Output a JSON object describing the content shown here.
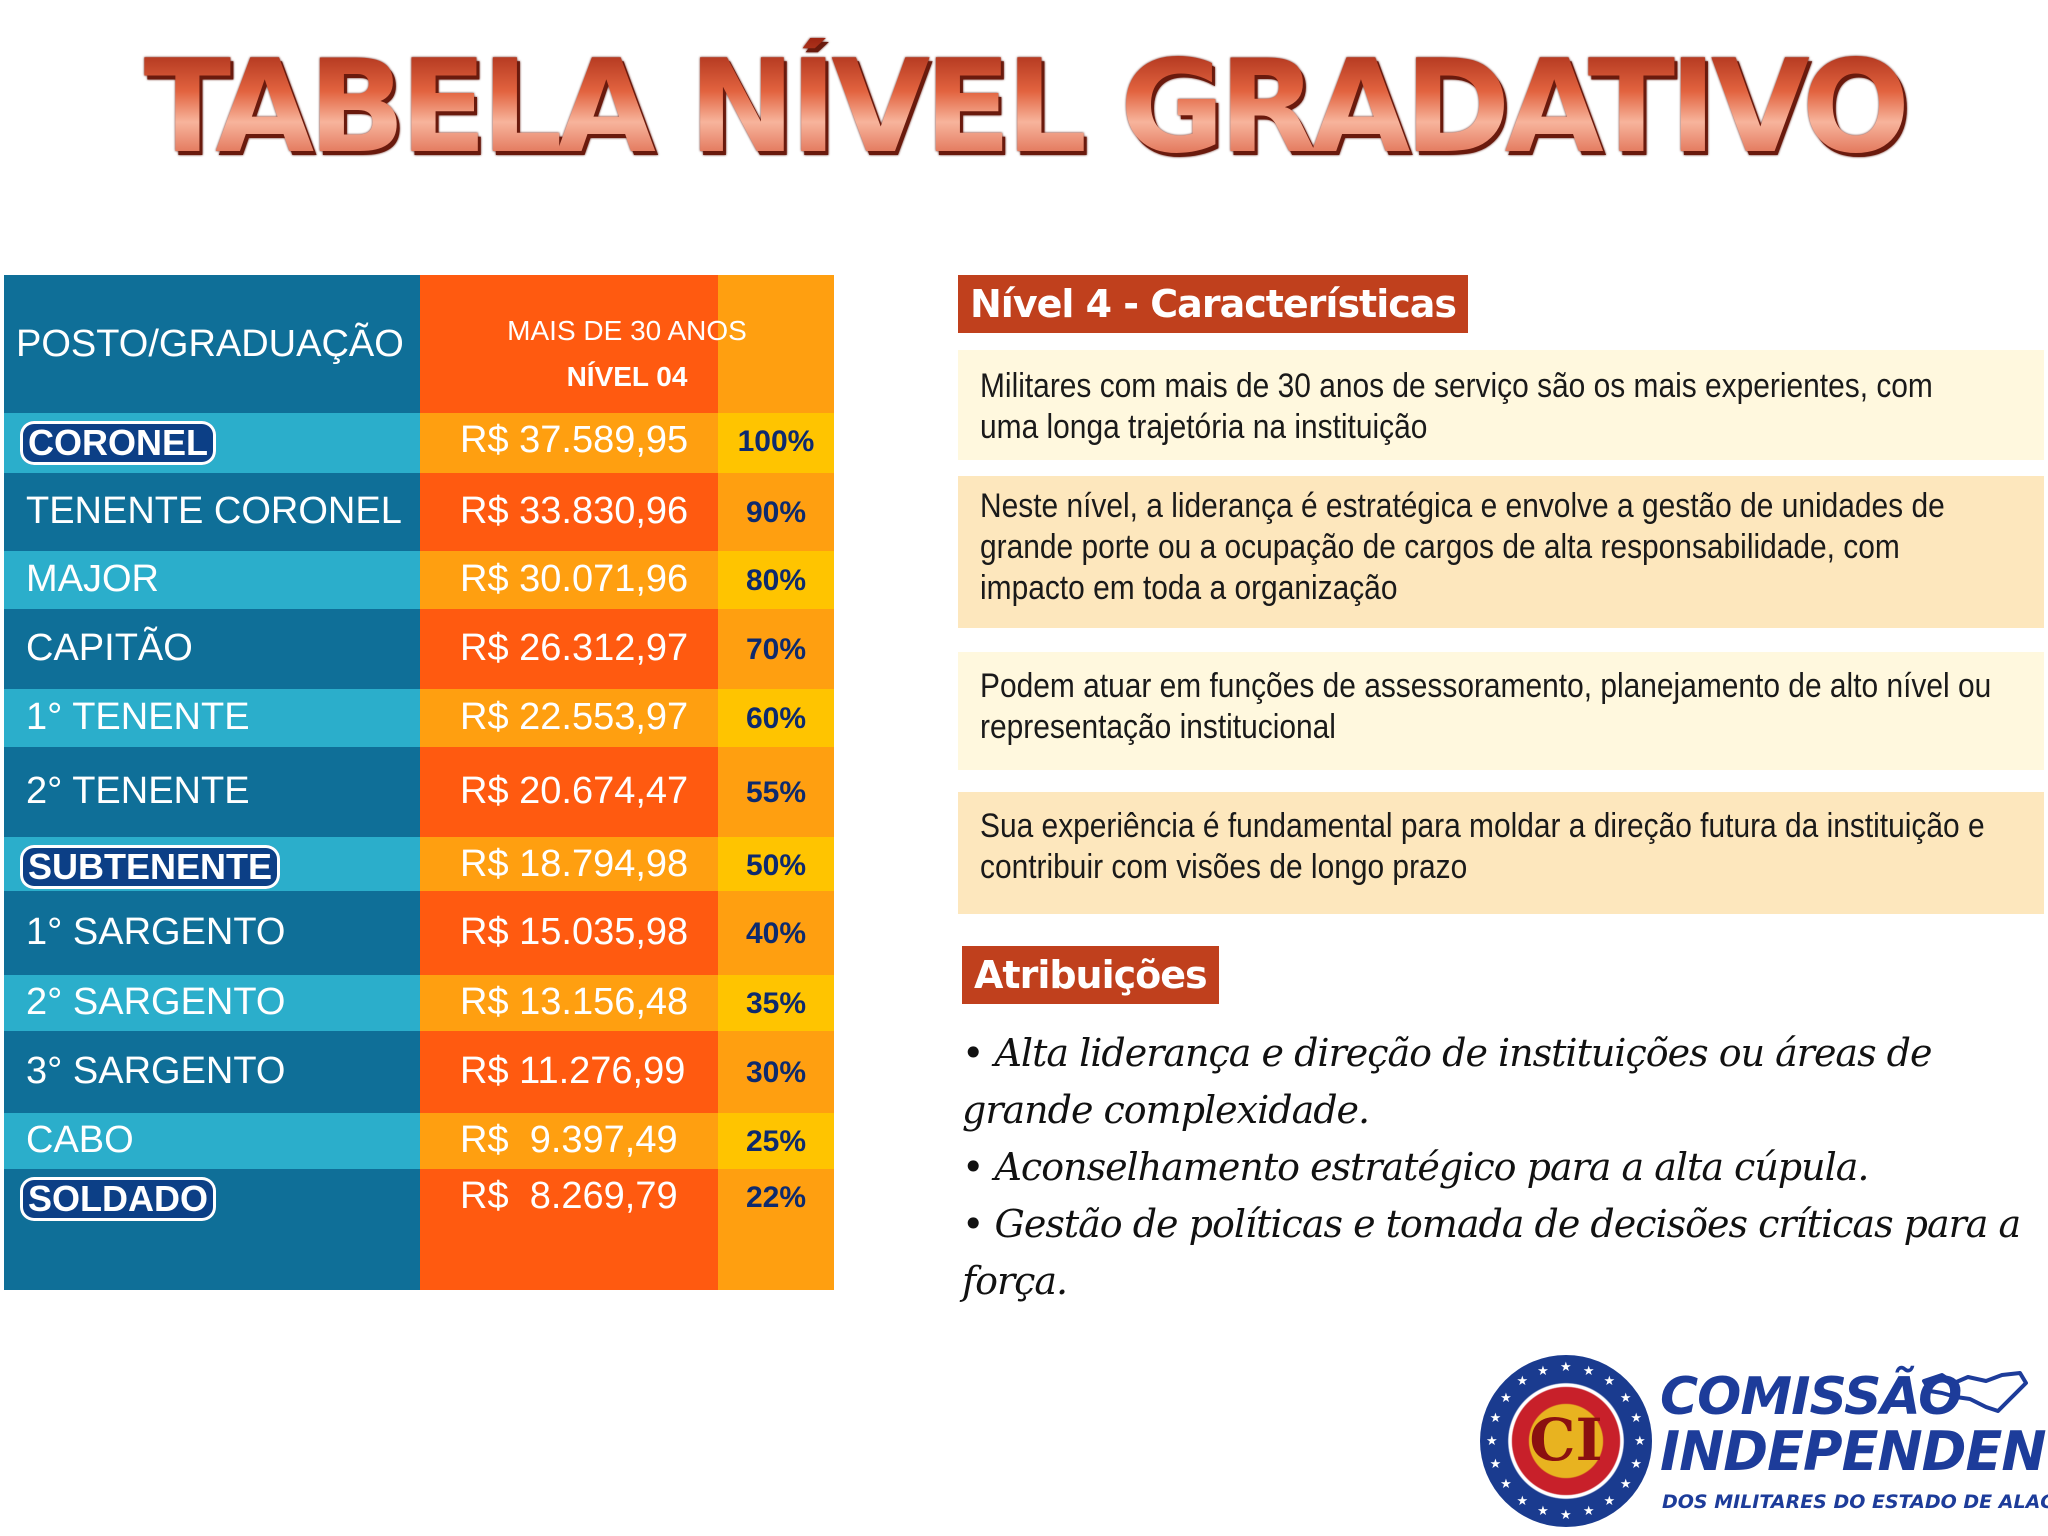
{
  "title": "TABELA NÍVEL GRADATIVO",
  "table": {
    "header_post": "POSTO/GRADUAÇÃO",
    "header_value_line1": "MAIS DE 30 ANOS",
    "header_value_line2": "NÍVEL 04",
    "rows": [
      {
        "post": "CORONEL",
        "value": "R$ 37.589,95",
        "pct": "100%"
      },
      {
        "post": "TENENTE CORONEL",
        "value": "R$ 33.830,96",
        "pct": "90%"
      },
      {
        "post": "MAJOR",
        "value": "R$ 30.071,96",
        "pct": "80%"
      },
      {
        "post": "CAPITÃO",
        "value": "R$ 26.312,97",
        "pct": "70%"
      },
      {
        "post": "1° TENENTE",
        "value": "R$ 22.553,97",
        "pct": "60%"
      },
      {
        "post": "2° TENENTE",
        "value": "R$ 20.674,47",
        "pct": "55%"
      },
      {
        "post": "SUBTENENTE",
        "value": "R$ 18.794,98",
        "pct": "50%"
      },
      {
        "post": "1° SARGENTO",
        "value": "R$ 15.035,98",
        "pct": "40%"
      },
      {
        "post": "2° SARGENTO",
        "value": "R$ 13.156,48",
        "pct": "35%"
      },
      {
        "post": "3° SARGENTO",
        "value": "R$ 11.276,99",
        "pct": "30%"
      },
      {
        "post": "CABO",
        "value": "R$  9.397,49",
        "pct": "25%"
      },
      {
        "post": "SOLDADO",
        "value": "R$  8.269,79",
        "pct": "22%"
      }
    ]
  },
  "characteristics": {
    "heading": "Nível 4 - Características",
    "items": [
      "Militares com mais de 30 anos de serviço são os mais experientes, com uma longa trajetória na instituição",
      "Neste nível, a liderança é estratégica e envolve a gestão de unidades de grande porte ou a ocupação de cargos de alta responsabilidade, com impacto em toda a organização",
      "Podem atuar em funções de assessoramento, planejamento de alto nível ou representação institucional",
      "Sua experiência é fundamental para moldar a direção futura da instituição e contribuir com visões de longo prazo"
    ]
  },
  "attributions": {
    "heading": "Atribuições",
    "items": [
      "• Alta liderança e direção de instituições ou áreas de grande complexidade.",
      "• Aconselhamento estratégico para a alta cúpula.",
      "• Gestão de políticas e tomada de decisões críticas para a força."
    ]
  },
  "logo": {
    "monogram": "CI",
    "line1": "COMISSÃO",
    "line2": "INDEPENDENTE",
    "line3": "DOS MILITARES DO ESTADO DE ALAGOAS"
  }
}
